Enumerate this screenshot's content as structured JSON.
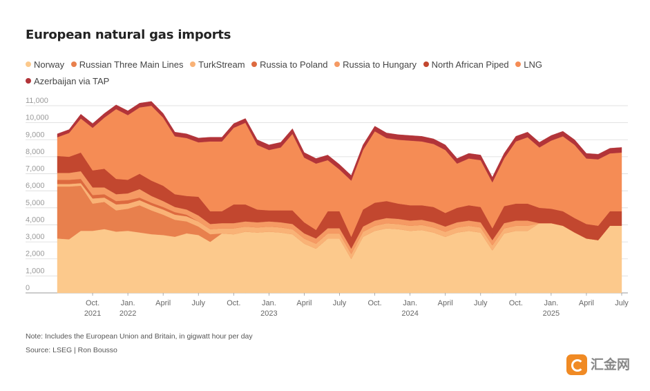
{
  "title": "European natural gas imports",
  "legend": [
    {
      "name": "Norway",
      "color": "#fcc98c"
    },
    {
      "name": "Russian Three Main Lines",
      "color": "#e8804d"
    },
    {
      "name": "TurkStream",
      "color": "#f9b276"
    },
    {
      "name": "Russia to Poland",
      "color": "#dd6a3f"
    },
    {
      "name": "Russia to Hungary",
      "color": "#f59a63"
    },
    {
      "name": "North African Piped",
      "color": "#c2472f"
    },
    {
      "name": "LNG",
      "color": "#f58c55"
    },
    {
      "name": "Azerbaijan via TAP",
      "color": "#b23439"
    }
  ],
  "note": "Note: Includes the European Union and Britain, in gigwatt hour per day",
  "source": "Source: LSEG | Ron Bousso",
  "watermark": {
    "text": "汇金网",
    "icon": "huijin-logo-icon"
  },
  "chart_data": {
    "type": "area",
    "stacked": true,
    "title": "European natural gas imports",
    "ylim": [
      0,
      11000
    ],
    "yticks": [
      0,
      1000,
      2000,
      3000,
      4000,
      5000,
      6000,
      7000,
      8000,
      9000,
      10000,
      11000
    ],
    "ytick_labels": [
      "0",
      "1,000",
      "2,000",
      "3,000",
      "4,000",
      "5,000",
      "6,000",
      "7,000",
      "8,000",
      "9,000",
      "10,000",
      "11,000"
    ],
    "xlim": [
      "2021-07",
      "2025-07"
    ],
    "xticks": [
      {
        "month": "2021-10",
        "label": "Oct.",
        "year": "2021"
      },
      {
        "month": "2022-01",
        "label": "Jan.",
        "year": "2022"
      },
      {
        "month": "2022-04",
        "label": "April",
        "year": ""
      },
      {
        "month": "2022-07",
        "label": "July",
        "year": ""
      },
      {
        "month": "2022-10",
        "label": "Oct.",
        "year": ""
      },
      {
        "month": "2023-01",
        "label": "Jan.",
        "year": "2023"
      },
      {
        "month": "2023-04",
        "label": "April",
        "year": ""
      },
      {
        "month": "2023-07",
        "label": "July",
        "year": ""
      },
      {
        "month": "2023-10",
        "label": "Oct.",
        "year": ""
      },
      {
        "month": "2024-01",
        "label": "Jan.",
        "year": "2024"
      },
      {
        "month": "2024-04",
        "label": "April",
        "year": ""
      },
      {
        "month": "2024-07",
        "label": "July",
        "year": ""
      },
      {
        "month": "2024-10",
        "label": "Oct.",
        "year": ""
      },
      {
        "month": "2025-01",
        "label": "Jan.",
        "year": "2025"
      },
      {
        "month": "2025-04",
        "label": "April",
        "year": ""
      },
      {
        "month": "2025-07",
        "label": "July",
        "year": ""
      }
    ],
    "x": [
      "2021-07",
      "2021-08",
      "2021-09",
      "2021-10",
      "2021-11",
      "2021-12",
      "2022-01",
      "2022-02",
      "2022-03",
      "2022-04",
      "2022-05",
      "2022-06",
      "2022-07",
      "2022-08",
      "2022-09",
      "2022-10",
      "2022-11",
      "2022-12",
      "2023-01",
      "2023-02",
      "2023-03",
      "2023-04",
      "2023-05",
      "2023-06",
      "2023-07",
      "2023-08",
      "2023-09",
      "2023-10",
      "2023-11",
      "2023-12",
      "2024-01",
      "2024-02",
      "2024-03",
      "2024-04",
      "2024-05",
      "2024-06",
      "2024-07",
      "2024-08",
      "2024-09",
      "2024-10",
      "2024-11",
      "2024-12",
      "2025-01",
      "2025-02",
      "2025-03",
      "2025-04",
      "2025-05",
      "2025-06",
      "2025-07"
    ],
    "series": [
      {
        "name": "Norway",
        "values": [
          3200,
          3150,
          3650,
          3650,
          3750,
          3600,
          3650,
          3550,
          3450,
          3400,
          3300,
          3500,
          3400,
          3000,
          3500,
          3450,
          3600,
          3550,
          3600,
          3550,
          3450,
          2900,
          2600,
          3200,
          3200,
          2000,
          3300,
          3650,
          3800,
          3750,
          3650,
          3700,
          3550,
          3300,
          3550,
          3650,
          3550,
          2500,
          3500,
          3650,
          3650,
          4100,
          4100,
          3950,
          3550,
          3200,
          3100,
          3950,
          3950
        ]
      },
      {
        "name": "Russian Three Main Lines",
        "values": [
          3050,
          3100,
          2650,
          1600,
          1600,
          1250,
          1300,
          1600,
          1400,
          1200,
          1000,
          700,
          500,
          450,
          0,
          0,
          0,
          0,
          0,
          0,
          0,
          0,
          0,
          0,
          0,
          0,
          0,
          0,
          0,
          0,
          0,
          0,
          0,
          0,
          0,
          0,
          0,
          0,
          0,
          0,
          0,
          0,
          0,
          0,
          0,
          0,
          0,
          0,
          0
        ]
      },
      {
        "name": "TurkStream",
        "values": [
          150,
          150,
          150,
          300,
          250,
          350,
          300,
          300,
          300,
          300,
          300,
          300,
          300,
          300,
          300,
          350,
          300,
          300,
          300,
          300,
          300,
          300,
          300,
          300,
          300,
          300,
          300,
          300,
          300,
          300,
          300,
          300,
          300,
          300,
          300,
          300,
          300,
          300,
          300,
          300,
          300,
          0,
          0,
          0,
          0,
          0,
          0,
          0,
          0
        ]
      },
      {
        "name": "Russia to Poland",
        "values": [
          250,
          250,
          250,
          200,
          200,
          200,
          200,
          150,
          150,
          150,
          150,
          100,
          0,
          0,
          0,
          0,
          0,
          0,
          0,
          0,
          0,
          0,
          0,
          0,
          0,
          0,
          0,
          0,
          0,
          0,
          0,
          0,
          0,
          0,
          0,
          0,
          0,
          0,
          0,
          0,
          0,
          0,
          0,
          0,
          0,
          0,
          0,
          0,
          0
        ]
      },
      {
        "name": "Russia to Hungary",
        "values": [
          400,
          400,
          450,
          450,
          400,
          400,
          400,
          500,
          400,
          350,
          300,
          300,
          350,
          300,
          300,
          300,
          300,
          300,
          300,
          300,
          300,
          300,
          300,
          300,
          300,
          300,
          300,
          300,
          300,
          300,
          300,
          300,
          300,
          300,
          300,
          300,
          300,
          300,
          300,
          300,
          300,
          0,
          0,
          0,
          0,
          0,
          0,
          0,
          0
        ]
      },
      {
        "name": "North African Piped",
        "values": [
          1000,
          950,
          1100,
          1000,
          1100,
          900,
          800,
          900,
          900,
          900,
          750,
          800,
          1100,
          750,
          700,
          1100,
          1000,
          750,
          650,
          700,
          800,
          650,
          500,
          1000,
          1000,
          700,
          1000,
          1050,
          1000,
          900,
          900,
          850,
          900,
          800,
          850,
          900,
          900,
          700,
          1000,
          1000,
          1000,
          900,
          850,
          850,
          850,
          850,
          850,
          850,
          850
        ]
      },
      {
        "name": "LNG",
        "values": [
          1100,
          1400,
          2000,
          2500,
          3000,
          4100,
          3800,
          3900,
          4400,
          4000,
          3400,
          3400,
          3200,
          4100,
          4100,
          4500,
          4800,
          3800,
          3550,
          3700,
          4500,
          3800,
          3900,
          3000,
          2450,
          3300,
          3500,
          4200,
          3700,
          3750,
          3800,
          3750,
          3700,
          3700,
          2600,
          2750,
          2750,
          2700,
          2800,
          3650,
          3900,
          3550,
          4000,
          4400,
          4300,
          3850,
          3900,
          3400,
          3450
        ]
      },
      {
        "name": "Azerbaijan via TAP",
        "values": [
          200,
          200,
          250,
          250,
          250,
          250,
          250,
          250,
          250,
          250,
          250,
          250,
          250,
          250,
          250,
          250,
          250,
          300,
          300,
          300,
          300,
          300,
          300,
          300,
          300,
          300,
          300,
          300,
          300,
          300,
          300,
          300,
          300,
          300,
          300,
          300,
          300,
          300,
          300,
          300,
          300,
          300,
          300,
          300,
          300,
          300,
          300,
          300,
          300
        ]
      }
    ]
  }
}
